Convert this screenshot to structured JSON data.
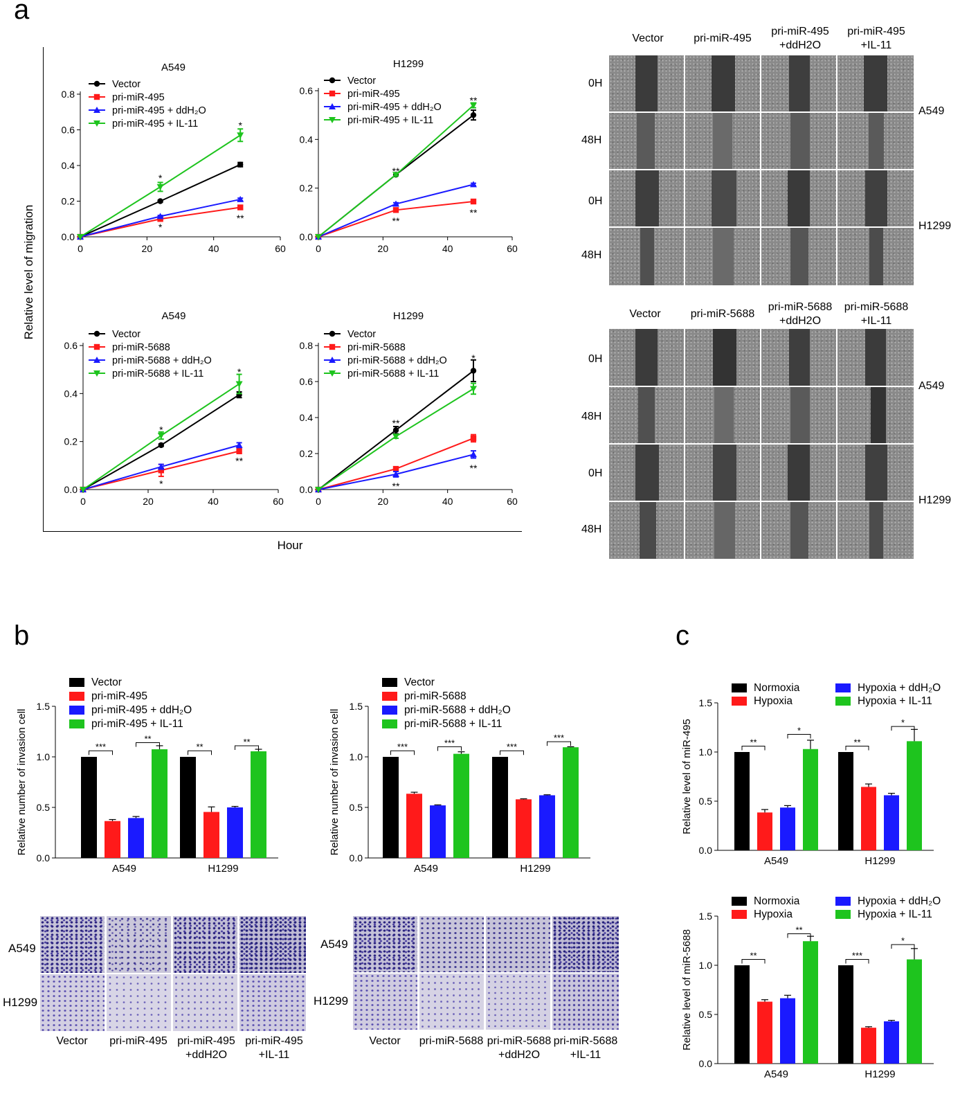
{
  "panels": {
    "a": "a",
    "b": "b",
    "c": "c"
  },
  "migration": {
    "ylabel": "Relative level of migration",
    "xlabel": "Hour"
  },
  "wound": {
    "top_cols": [
      "Vector",
      "pri-miR-495",
      "pri-miR-495\n+ddH2O",
      "pri-miR-495\n+IL-11"
    ],
    "bottom_cols": [
      "Vector",
      "pri-miR-5688",
      "pri-miR-5688\n+ddH2O",
      "pri-miR-5688\n+IL-11"
    ],
    "rows": [
      "0H",
      "48H",
      "0H",
      "48H"
    ],
    "cells": [
      "A549",
      "H1299"
    ]
  },
  "transwell": {
    "cells": [
      "A549",
      "H1299"
    ],
    "left_cols": [
      "Vector",
      "pri-miR-495",
      "pri-miR-495\n+ddH2O",
      "pri-miR-495\n+IL-11"
    ],
    "right_cols": [
      "Vector",
      "pri-miR-5688",
      "pri-miR-5688\n+ddH2O",
      "pri-miR-5688\n+IL-11"
    ]
  },
  "colors": {
    "black": "#000000",
    "red": "#ff1a1a",
    "blue": "#1a1aff",
    "green": "#1ec41e"
  },
  "chart_data": [
    {
      "id": "a1",
      "type": "line",
      "title": "A549",
      "x": [
        0,
        24,
        48
      ],
      "xlim": [
        0,
        60
      ],
      "xticks": [
        0,
        20,
        40,
        60
      ],
      "ylim": [
        0,
        0.8
      ],
      "yticks": [
        0.0,
        0.2,
        0.4,
        0.6,
        0.8
      ],
      "series": [
        {
          "name": "Vector",
          "values": [
            0,
            0.2,
            0.405
          ],
          "err": [
            0,
            0.005,
            0.012
          ],
          "marker": "circle",
          "color": "#000000"
        },
        {
          "name": "pri-miR-495",
          "values": [
            0,
            0.1,
            0.165
          ],
          "err": [
            0,
            0.008,
            0.01
          ],
          "marker": "square",
          "color": "#ff1a1a"
        },
        {
          "name": "pri-miR-495 + ddH₂O",
          "values": [
            0,
            0.115,
            0.21
          ],
          "err": [
            0,
            0.005,
            0.007
          ],
          "marker": "triangle",
          "color": "#1a1aff"
        },
        {
          "name": "pri-miR-495 + IL-11",
          "values": [
            0,
            0.28,
            0.57
          ],
          "err": [
            0,
            0.025,
            0.035
          ],
          "marker": "tridown",
          "color": "#1ec41e"
        }
      ],
      "annotations": [
        {
          "x": 24,
          "y": 0.33,
          "text": "*"
        },
        {
          "x": 24,
          "y": 0.055,
          "text": "*"
        },
        {
          "x": 48,
          "y": 0.625,
          "text": "*"
        },
        {
          "x": 48,
          "y": 0.105,
          "text": "**"
        }
      ]
    },
    {
      "id": "a2",
      "type": "line",
      "title": "H1299",
      "x": [
        0,
        24,
        48
      ],
      "xlim": [
        0,
        60
      ],
      "xticks": [
        0,
        20,
        40,
        60
      ],
      "ylim": [
        0,
        0.6
      ],
      "yticks": [
        0.0,
        0.2,
        0.4,
        0.6
      ],
      "series": [
        {
          "name": "Vector",
          "values": [
            0,
            0.255,
            0.5
          ],
          "err": [
            0,
            0.005,
            0.02
          ],
          "marker": "circle",
          "color": "#000000"
        },
        {
          "name": "pri-miR-495",
          "values": [
            0,
            0.11,
            0.145
          ],
          "err": [
            0,
            0.005,
            0.005
          ],
          "marker": "square",
          "color": "#ff1a1a"
        },
        {
          "name": "pri-miR-495 + ddH₂O",
          "values": [
            0,
            0.135,
            0.215
          ],
          "err": [
            0,
            0.005,
            0.005
          ],
          "marker": "triangle",
          "color": "#1a1aff"
        },
        {
          "name": "pri-miR-495 + IL-11",
          "values": [
            0,
            0.255,
            0.54
          ],
          "err": [
            0,
            0.005,
            0.01
          ],
          "marker": "tridown",
          "color": "#1ec41e"
        }
      ],
      "annotations": [
        {
          "x": 24,
          "y": 0.27,
          "text": "**"
        },
        {
          "x": 24,
          "y": 0.065,
          "text": "**"
        },
        {
          "x": 48,
          "y": 0.56,
          "text": "**"
        },
        {
          "x": 48,
          "y": 0.1,
          "text": "**"
        }
      ]
    },
    {
      "id": "a3",
      "type": "line",
      "title": "A549",
      "x": [
        0,
        24,
        48
      ],
      "xlim": [
        0,
        60
      ],
      "xticks": [
        0,
        20,
        40,
        60
      ],
      "ylim": [
        0,
        0.6
      ],
      "yticks": [
        0.0,
        0.2,
        0.4,
        0.6
      ],
      "series": [
        {
          "name": "Vector",
          "values": [
            0,
            0.185,
            0.395
          ],
          "err": [
            0,
            0.005,
            0.012
          ],
          "marker": "circle",
          "color": "#000000"
        },
        {
          "name": "pri-miR-5688",
          "values": [
            0,
            0.08,
            0.16
          ],
          "err": [
            0,
            0.025,
            0.01
          ],
          "marker": "square",
          "color": "#ff1a1a"
        },
        {
          "name": "pri-miR-5688 + ddH₂O",
          "values": [
            0,
            0.095,
            0.185
          ],
          "err": [
            0,
            0.01,
            0.01
          ],
          "marker": "triangle",
          "color": "#1a1aff"
        },
        {
          "name": "pri-miR-5688 + IL-11",
          "values": [
            0,
            0.225,
            0.44
          ],
          "err": [
            0,
            0.015,
            0.04
          ],
          "marker": "tridown",
          "color": "#1ec41e"
        }
      ],
      "annotations": [
        {
          "x": 24,
          "y": 0.25,
          "text": "*"
        },
        {
          "x": 24,
          "y": 0.025,
          "text": "*"
        },
        {
          "x": 48,
          "y": 0.49,
          "text": "*"
        },
        {
          "x": 48,
          "y": 0.12,
          "text": "**"
        }
      ]
    },
    {
      "id": "a4",
      "type": "line",
      "title": "H1299",
      "x": [
        0,
        24,
        48
      ],
      "xlim": [
        0,
        60
      ],
      "xticks": [
        0,
        20,
        40,
        60
      ],
      "ylim": [
        0,
        0.8
      ],
      "yticks": [
        0.0,
        0.2,
        0.4,
        0.6,
        0.8
      ],
      "series": [
        {
          "name": "Vector",
          "values": [
            0,
            0.33,
            0.66
          ],
          "err": [
            0,
            0.02,
            0.06
          ],
          "marker": "circle",
          "color": "#000000"
        },
        {
          "name": "pri-miR-5688",
          "values": [
            0,
            0.115,
            0.285
          ],
          "err": [
            0,
            0.01,
            0.02
          ],
          "marker": "square",
          "color": "#ff1a1a"
        },
        {
          "name": "pri-miR-5688 + ddH₂O",
          "values": [
            0,
            0.085,
            0.195
          ],
          "err": [
            0,
            0.015,
            0.02
          ],
          "marker": "triangle",
          "color": "#1a1aff"
        },
        {
          "name": "pri-miR-5688 + IL-11",
          "values": [
            0,
            0.295,
            0.56
          ],
          "err": [
            0,
            0.01,
            0.03
          ],
          "marker": "tridown",
          "color": "#1ec41e"
        }
      ],
      "annotations": [
        {
          "x": 24,
          "y": 0.37,
          "text": "**"
        },
        {
          "x": 24,
          "y": 0.02,
          "text": "**"
        },
        {
          "x": 48,
          "y": 0.73,
          "text": "*"
        },
        {
          "x": 48,
          "y": 0.12,
          "text": "**"
        }
      ]
    },
    {
      "id": "b1",
      "type": "bar",
      "ylabel": "Relative number of invasion cell",
      "categories": [
        "A549",
        "H1299"
      ],
      "ylim": [
        0,
        1.5
      ],
      "yticks": [
        0.0,
        0.5,
        1.0,
        1.5
      ],
      "series": [
        {
          "name": "Vector",
          "values": [
            1.0,
            1.0
          ],
          "err": [
            0,
            0
          ],
          "color": "#000000"
        },
        {
          "name": "pri-miR-495",
          "values": [
            0.365,
            0.455
          ],
          "err": [
            0.015,
            0.05
          ],
          "color": "#ff1a1a"
        },
        {
          "name": "pri-miR-495 + ddH₂O",
          "values": [
            0.395,
            0.5
          ],
          "err": [
            0.015,
            0.01
          ],
          "color": "#1a1aff"
        },
        {
          "name": "pri-miR-495 + IL-11",
          "values": [
            1.075,
            1.055
          ],
          "err": [
            0.035,
            0.02
          ],
          "color": "#1ec41e"
        }
      ],
      "brackets": [
        {
          "group": 0,
          "from": 0,
          "to": 1,
          "y": 1.06,
          "text": "***"
        },
        {
          "group": 0,
          "from": 2,
          "to": 3,
          "y": 1.14,
          "text": "**"
        },
        {
          "group": 1,
          "from": 0,
          "to": 1,
          "y": 1.06,
          "text": "**"
        },
        {
          "group": 1,
          "from": 2,
          "to": 3,
          "y": 1.11,
          "text": "**"
        }
      ]
    },
    {
      "id": "b2",
      "type": "bar",
      "ylabel": "Relative number of invasion cell",
      "categories": [
        "A549",
        "H1299"
      ],
      "ylim": [
        0,
        1.5
      ],
      "yticks": [
        0.0,
        0.5,
        1.0,
        1.5
      ],
      "series": [
        {
          "name": "Vector",
          "values": [
            1.0,
            1.0
          ],
          "err": [
            0,
            0
          ],
          "color": "#000000"
        },
        {
          "name": "pri-miR-5688",
          "values": [
            0.635,
            0.58
          ],
          "err": [
            0.015,
            0.005
          ],
          "color": "#ff1a1a"
        },
        {
          "name": "pri-miR-5688 + ddH₂O",
          "values": [
            0.52,
            0.62
          ],
          "err": [
            0.005,
            0.005
          ],
          "color": "#1a1aff"
        },
        {
          "name": "pri-miR-5688 + IL-11",
          "values": [
            1.03,
            1.095
          ],
          "err": [
            0.02,
            0.005
          ],
          "color": "#1ec41e"
        }
      ],
      "brackets": [
        {
          "group": 0,
          "from": 0,
          "to": 1,
          "y": 1.06,
          "text": "***"
        },
        {
          "group": 0,
          "from": 2,
          "to": 3,
          "y": 1.1,
          "text": "***"
        },
        {
          "group": 1,
          "from": 0,
          "to": 1,
          "y": 1.06,
          "text": "***"
        },
        {
          "group": 1,
          "from": 2,
          "to": 3,
          "y": 1.15,
          "text": "***"
        }
      ]
    },
    {
      "id": "c1",
      "type": "bar",
      "ylabel": "Relative level of miR-495",
      "categories": [
        "A549",
        "H1299"
      ],
      "ylim": [
        0,
        1.5
      ],
      "yticks": [
        0.0,
        0.5,
        1.0,
        1.5
      ],
      "series": [
        {
          "name": "Normoxia",
          "values": [
            1.0,
            1.0
          ],
          "err": [
            0,
            0
          ],
          "color": "#000000"
        },
        {
          "name": "Hypoxia",
          "values": [
            0.385,
            0.645
          ],
          "err": [
            0.03,
            0.03
          ],
          "color": "#ff1a1a"
        },
        {
          "name": "Hypoxia + ddH₂O",
          "values": [
            0.435,
            0.56
          ],
          "err": [
            0.02,
            0.02
          ],
          "color": "#1a1aff"
        },
        {
          "name": "Hypoxia + IL-11",
          "values": [
            1.03,
            1.11
          ],
          "err": [
            0.09,
            0.12
          ],
          "color": "#1ec41e"
        }
      ],
      "brackets": [
        {
          "group": 0,
          "from": 0,
          "to": 1,
          "y": 1.06,
          "text": "**"
        },
        {
          "group": 0,
          "from": 2,
          "to": 3,
          "y": 1.18,
          "text": "*"
        },
        {
          "group": 1,
          "from": 0,
          "to": 1,
          "y": 1.06,
          "text": "**"
        },
        {
          "group": 1,
          "from": 2,
          "to": 3,
          "y": 1.26,
          "text": "*"
        }
      ]
    },
    {
      "id": "c2",
      "type": "bar",
      "ylabel": "Relative level of miR-5688",
      "categories": [
        "A549",
        "H1299"
      ],
      "ylim": [
        0,
        1.5
      ],
      "yticks": [
        0.0,
        0.5,
        1.0,
        1.5
      ],
      "series": [
        {
          "name": "Normoxia",
          "values": [
            1.0,
            1.0
          ],
          "err": [
            0,
            0
          ],
          "color": "#000000"
        },
        {
          "name": "Hypoxia",
          "values": [
            0.63,
            0.365
          ],
          "err": [
            0.02,
            0.01
          ],
          "color": "#ff1a1a"
        },
        {
          "name": "Hypoxia + ddH₂O",
          "values": [
            0.665,
            0.43
          ],
          "err": [
            0.03,
            0.01
          ],
          "color": "#1a1aff"
        },
        {
          "name": "Hypoxia + IL-11",
          "values": [
            1.245,
            1.06
          ],
          "err": [
            0.05,
            0.11
          ],
          "color": "#1ec41e"
        }
      ],
      "brackets": [
        {
          "group": 0,
          "from": 0,
          "to": 1,
          "y": 1.06,
          "text": "**"
        },
        {
          "group": 0,
          "from": 2,
          "to": 3,
          "y": 1.32,
          "text": "**"
        },
        {
          "group": 1,
          "from": 0,
          "to": 1,
          "y": 1.06,
          "text": "***"
        },
        {
          "group": 1,
          "from": 2,
          "to": 3,
          "y": 1.21,
          "text": "*"
        }
      ]
    }
  ]
}
